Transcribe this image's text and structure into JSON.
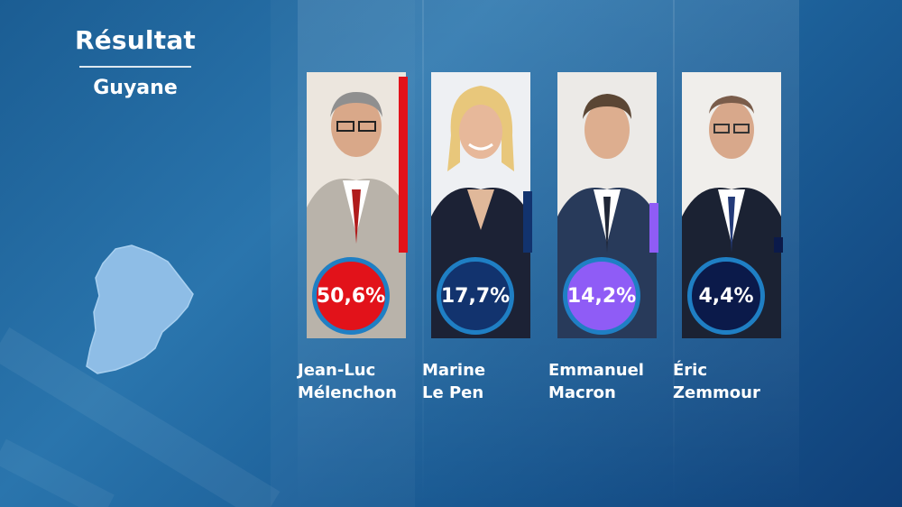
{
  "header": {
    "title": "Résultat",
    "region": "Guyane"
  },
  "colors": {
    "melenchon": "#e2121a",
    "le_pen": "#12336e",
    "macron": "#8f5cf6",
    "zemmour": "#0b1a4a"
  },
  "chart_data": {
    "type": "bar",
    "categories": [
      "Jean-Luc Mélenchon",
      "Marine Le Pen",
      "Emmanuel Macron",
      "Éric Zemmour"
    ],
    "values": [
      50.6,
      17.7,
      14.2,
      4.4
    ],
    "value_labels": [
      "50,6%",
      "17,7%",
      "14,2%",
      "4,4%"
    ],
    "name_lines": [
      [
        "Jean-Luc",
        "Mélenchon"
      ],
      [
        "Marine",
        "Le Pen"
      ],
      [
        "Emmanuel",
        "Macron"
      ],
      [
        "Éric",
        "Zemmour"
      ]
    ],
    "colors": [
      "#e2121a",
      "#12336e",
      "#8f5cf6",
      "#0b1a4a"
    ],
    "ylim": [
      0,
      50.6
    ]
  }
}
